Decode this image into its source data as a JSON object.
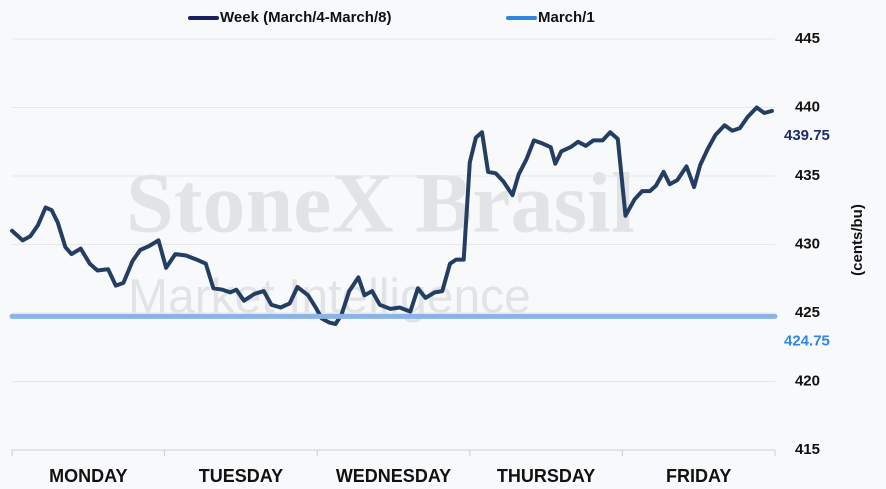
{
  "chart_data": {
    "type": "line",
    "watermark": [
      "StoneX Brasil",
      "Market Intelligence"
    ],
    "y_axis_label": "(cents/bu)",
    "categories": [
      "MONDAY",
      "TUESDAY",
      "WEDNESDAY",
      "THURSDAY",
      "FRIDAY"
    ],
    "xlim": [
      0,
      5
    ],
    "xticks": [
      0,
      1,
      2,
      3,
      4,
      5
    ],
    "ylim": [
      415,
      445
    ],
    "yticks": [
      415,
      420,
      425,
      430,
      435,
      440,
      445
    ],
    "grid": true,
    "series": [
      {
        "name": "Week (March/4-March/8)",
        "color": "#243e63",
        "legend_color": "#1b1f5e",
        "label_color": "#1f2a6b",
        "x": [
          0.0,
          0.07,
          0.12,
          0.17,
          0.22,
          0.26,
          0.3,
          0.35,
          0.39,
          0.45,
          0.51,
          0.56,
          0.63,
          0.68,
          0.73,
          0.79,
          0.84,
          0.9,
          0.96,
          1.01,
          1.07,
          1.14,
          1.21,
          1.27,
          1.32,
          1.38,
          1.43,
          1.47,
          1.52,
          1.59,
          1.65,
          1.7,
          1.76,
          1.82,
          1.87,
          1.94,
          1.99,
          2.03,
          2.08,
          2.12,
          2.16,
          2.21,
          2.27,
          2.31,
          2.36,
          2.41,
          2.48,
          2.54,
          2.61,
          2.66,
          2.71,
          2.77,
          2.82,
          2.87,
          2.91,
          2.96,
          3.0,
          3.04,
          3.08,
          3.12,
          3.17,
          3.22,
          3.28,
          3.32,
          3.37,
          3.42,
          3.47,
          3.53,
          3.56,
          3.6,
          3.66,
          3.71,
          3.76,
          3.81,
          3.87,
          3.92,
          3.97,
          4.02,
          4.08,
          4.13,
          4.18,
          4.22,
          4.27,
          4.31,
          4.36,
          4.42,
          4.47,
          4.51,
          4.56,
          4.61,
          4.67,
          4.72,
          4.77,
          4.82,
          4.88,
          4.93,
          4.98
        ],
        "values": [
          431.0,
          430.3,
          430.6,
          431.4,
          432.7,
          432.5,
          431.6,
          429.8,
          429.3,
          429.7,
          428.6,
          428.1,
          428.2,
          427.0,
          427.2,
          428.8,
          429.6,
          429.9,
          430.3,
          428.3,
          429.3,
          429.2,
          428.9,
          428.6,
          426.8,
          426.7,
          426.5,
          426.7,
          425.9,
          426.4,
          426.6,
          425.6,
          425.4,
          425.7,
          426.9,
          426.3,
          425.4,
          424.6,
          424.3,
          424.2,
          424.9,
          426.6,
          427.6,
          426.3,
          426.6,
          425.6,
          425.3,
          425.4,
          425.1,
          426.8,
          426.1,
          426.5,
          426.6,
          428.6,
          428.9,
          428.9,
          436.0,
          437.8,
          438.2,
          435.3,
          435.2,
          434.6,
          433.6,
          435.1,
          436.2,
          437.6,
          437.4,
          437.1,
          435.9,
          436.8,
          437.1,
          437.5,
          437.2,
          437.6,
          437.6,
          438.2,
          437.7,
          432.1,
          433.3,
          433.9,
          433.9,
          434.3,
          435.3,
          434.4,
          434.7,
          435.7,
          434.2,
          435.8,
          437.0,
          438.0,
          438.7,
          438.3,
          438.5,
          439.3,
          440.0,
          439.6,
          439.75
        ]
      },
      {
        "name": "March/1",
        "color": "#8cb3e6",
        "legend_color": "#2e86de",
        "label_color": "#2e86de",
        "x": [
          0,
          5
        ],
        "values": [
          424.75,
          424.75
        ]
      }
    ]
  }
}
